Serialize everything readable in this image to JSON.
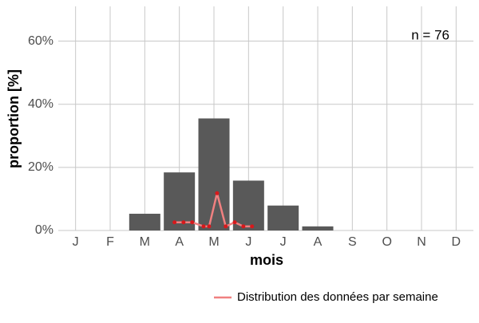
{
  "chart_data": {
    "type": "bar",
    "categories": [
      "J",
      "F",
      "M",
      "A",
      "M",
      "J",
      "J",
      "A",
      "S",
      "O",
      "N",
      "D"
    ],
    "values": [
      0,
      0,
      5.3,
      18.4,
      35.5,
      15.8,
      7.9,
      1.3,
      0,
      0,
      0,
      0
    ],
    "color": "#595959",
    "ylim": [
      0,
      71
    ],
    "yticks": [
      {
        "value": 0,
        "label": "0%"
      },
      {
        "value": 20,
        "label": "20%"
      },
      {
        "value": 40,
        "label": "40%"
      },
      {
        "value": 60,
        "label": "60%"
      }
    ],
    "grid": true,
    "x_label": "mois",
    "y_label": "proportion [%]",
    "annotation": "n = 76",
    "legend_position": "bottom-right",
    "overlay": {
      "type": "line",
      "name": "Distribution des données par semaine",
      "color": "#f08080",
      "point_color": "#d7191c",
      "x": [
        3.86,
        4.12,
        4.37,
        4.7,
        4.86,
        5.09,
        5.34,
        5.6,
        5.85,
        6.1
      ],
      "values": [
        2.6,
        2.6,
        2.6,
        1.3,
        1.3,
        11.8,
        1.3,
        2.6,
        1.3,
        1.3
      ]
    }
  }
}
